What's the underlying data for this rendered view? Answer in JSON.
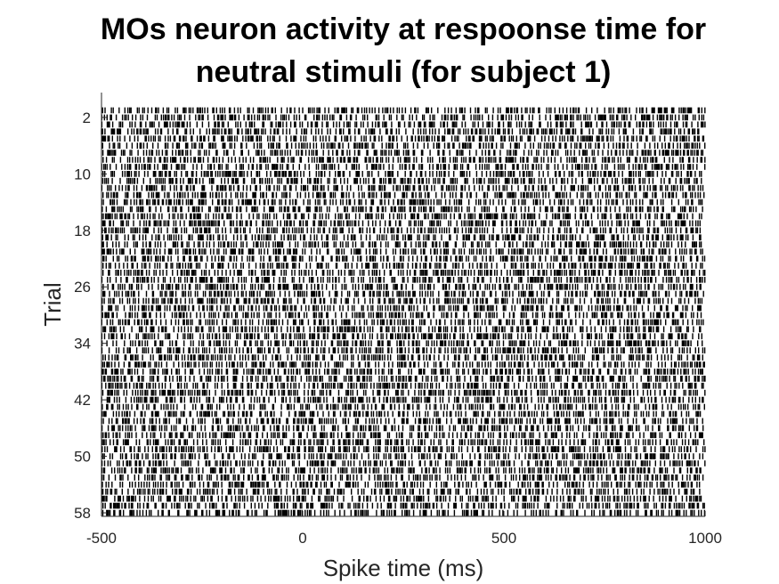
{
  "chart_data": {
    "type": "raster",
    "title": [
      "MOs neuron activity at respoonse time for",
      "neutral stimuli (for subject 1)"
    ],
    "xlabel": "Spike time (ms)",
    "ylabel": "Trial",
    "xlim": [
      -500,
      1000
    ],
    "xticks": [
      -500,
      0,
      500,
      1000
    ],
    "ylim": [
      1,
      58
    ],
    "yticks": [
      2,
      10,
      18,
      26,
      34,
      42,
      50,
      58
    ],
    "trials": 58,
    "spike_color": "#000000",
    "grid": false,
    "legend": "none"
  }
}
